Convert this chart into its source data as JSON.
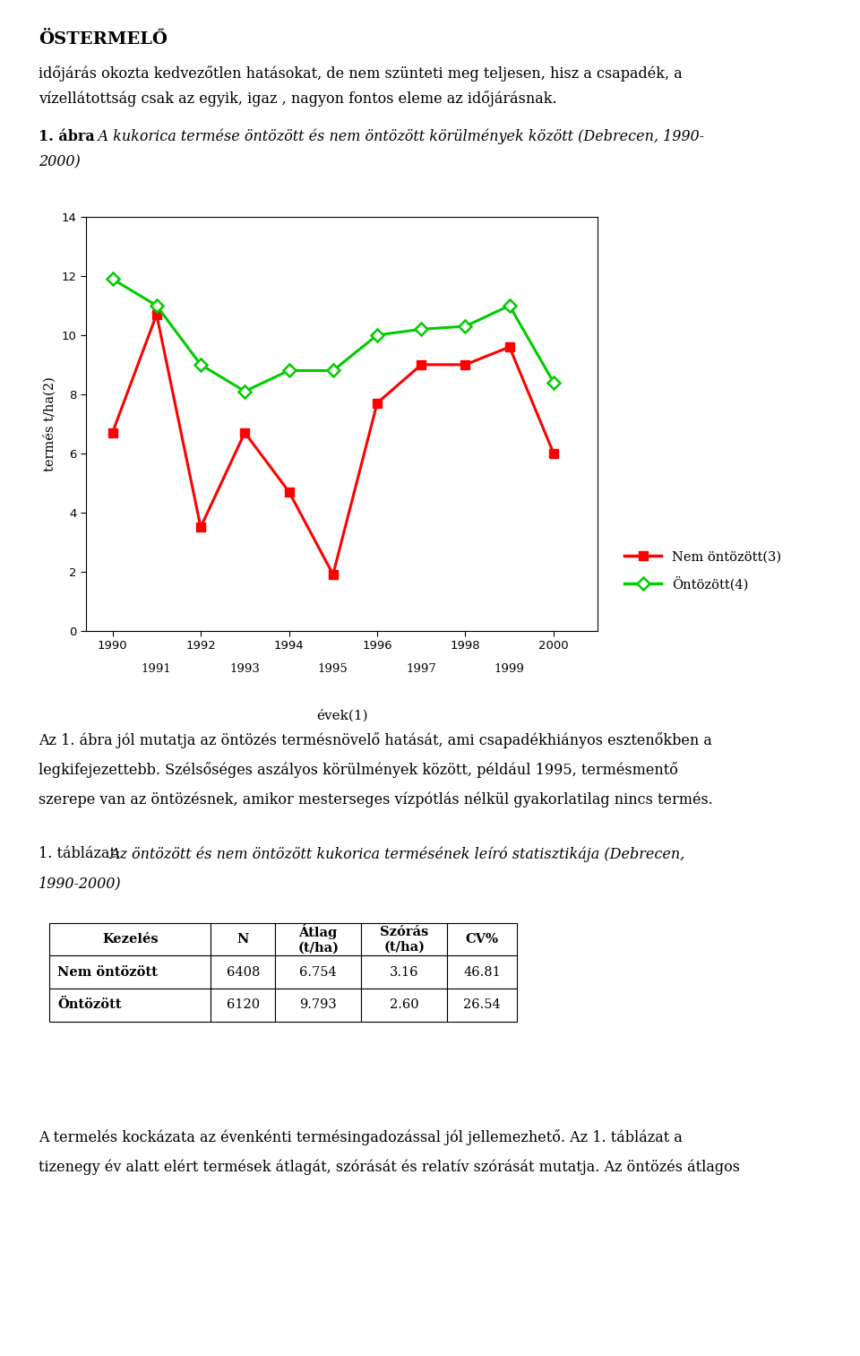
{
  "title_header": "ÖSTERMELŐ",
  "intro_line1": "időjárás okozta kedvezőtlen hatásokat, de nem szünteti meg teljesen, hisz a csapadék, a",
  "intro_line2": "vízellátottság csak az egyik, igaz , nagyon fontos eleme az időjárásnak.",
  "fig_caption_bold": "1. ábra",
  "fig_caption_rest": ": A kukorica termése öntözött és nem öntözött körülmények között (Debrecen, 1990-",
  "fig_caption_line2": "2000)",
  "years": [
    1990,
    1991,
    1992,
    1993,
    1994,
    1995,
    1996,
    1997,
    1998,
    1999,
    2000
  ],
  "nem_ontozott": [
    6.7,
    10.7,
    3.5,
    6.7,
    4.7,
    1.9,
    7.7,
    9.0,
    9.0,
    9.6,
    6.0
  ],
  "ontozott": [
    11.9,
    11.0,
    9.0,
    8.1,
    8.8,
    8.8,
    10.0,
    10.2,
    10.3,
    11.0,
    8.4
  ],
  "red_color": "#ff0000",
  "green_color": "#00cc00",
  "ylabel": "termés t/ha(2)",
  "xlabel": "évek(1)",
  "legend_nem": "Nem öntözött(3)",
  "legend_ont": "Öntözött(4)",
  "ylim": [
    0,
    14
  ],
  "yticks": [
    0,
    2,
    4,
    6,
    8,
    10,
    12,
    14
  ],
  "xticks_main": [
    1990,
    1992,
    1994,
    1996,
    1998,
    2000
  ],
  "xticks_sub": [
    1991,
    1993,
    1995,
    1997,
    1999
  ],
  "after_line1": "Az 1. ábra jól mutatja az öntözés termésnövelő hatását, ami csapadékhiányos esztenőkben a",
  "after_line2": "legkifejezettebb. Szélsőséges aszályos körülmények között, például 1995, termésmentő",
  "after_line3": "szerepe van az öntözésnek, amikor mesterseges vízpótlás nélkül gyakorlatilag nincs termés.",
  "tbl_caption_normal": "1. táblázat: ",
  "tbl_caption_italic": "Az öntözött és nem öntözött kukorica termésének leíró statisztikája (Debrecen,",
  "tbl_caption_line2": "1990-2000)",
  "table_headers": [
    "Kezelés",
    "N",
    "Átlag\n(t/ha)",
    "Szórás\n(t/ha)",
    "CV%"
  ],
  "table_row1": [
    "Nem öntözött",
    "6408",
    "6.754",
    "3.16",
    "46.81"
  ],
  "table_row2": [
    "Öntözött",
    "6120",
    "9.793",
    "2.60",
    "26.54"
  ],
  "footer_line1": "A termelés kockázata az évenkénti termésingadozással jól jellemezhető. Az 1. táblázat a",
  "footer_line2": "tizenegy év alatt elért termések átlagát, szórását és relatív szórását mutatja. Az öntözés átlagos"
}
